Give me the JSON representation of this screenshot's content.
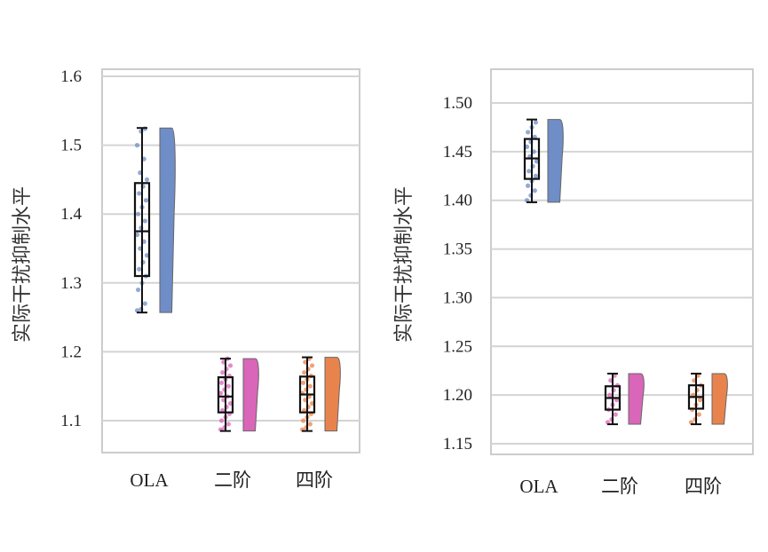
{
  "chart_data": [
    {
      "type": "box",
      "ylabel": "实际干扰抑制水平",
      "ylim": [
        1.05,
        1.6
      ],
      "yticks": [
        "1.1",
        "1.2",
        "1.3",
        "1.4",
        "1.5",
        "1.6"
      ],
      "grid": true,
      "categories": [
        "OLA",
        "二阶",
        "四阶"
      ],
      "colors": [
        "#6f8dc6",
        "#d966b9",
        "#e9834e"
      ],
      "series": [
        {
          "category": "OLA",
          "min": 1.257,
          "q1": 1.31,
          "median": 1.375,
          "q3": 1.445,
          "max": 1.525,
          "points": [
            1.26,
            1.262,
            1.27,
            1.29,
            1.3,
            1.31,
            1.32,
            1.33,
            1.34,
            1.35,
            1.36,
            1.37,
            1.38,
            1.39,
            1.4,
            1.41,
            1.42,
            1.43,
            1.44,
            1.45,
            1.46,
            1.48,
            1.5,
            1.52,
            1.524
          ]
        },
        {
          "category": "二阶",
          "min": 1.085,
          "q1": 1.112,
          "median": 1.135,
          "q3": 1.163,
          "max": 1.19,
          "points": [
            1.087,
            1.09,
            1.095,
            1.1,
            1.105,
            1.11,
            1.115,
            1.12,
            1.125,
            1.13,
            1.135,
            1.14,
            1.145,
            1.15,
            1.155,
            1.16,
            1.165,
            1.17,
            1.175,
            1.18,
            1.185,
            1.19
          ]
        },
        {
          "category": "四阶",
          "min": 1.085,
          "q1": 1.112,
          "median": 1.138,
          "q3": 1.164,
          "max": 1.192,
          "points": [
            1.087,
            1.09,
            1.095,
            1.1,
            1.105,
            1.11,
            1.115,
            1.12,
            1.125,
            1.13,
            1.135,
            1.14,
            1.145,
            1.15,
            1.155,
            1.16,
            1.165,
            1.17,
            1.175,
            1.18,
            1.185,
            1.19
          ]
        }
      ]
    },
    {
      "type": "box",
      "ylabel": "实际干扰抑制水平",
      "ylim": [
        1.14,
        1.54
      ],
      "yticks": [
        "1.15",
        "1.20",
        "1.25",
        "1.30",
        "1.35",
        "1.40",
        "1.45",
        "1.50"
      ],
      "grid": true,
      "categories": [
        "OLA",
        "二阶",
        "四阶"
      ],
      "colors": [
        "#6f8dc6",
        "#d966b9",
        "#e9834e"
      ],
      "series": [
        {
          "category": "OLA",
          "min": 1.398,
          "q1": 1.422,
          "median": 1.443,
          "q3": 1.463,
          "max": 1.483,
          "points": [
            1.4,
            1.405,
            1.41,
            1.415,
            1.42,
            1.425,
            1.43,
            1.435,
            1.44,
            1.445,
            1.45,
            1.455,
            1.46,
            1.465,
            1.47,
            1.475,
            1.48
          ]
        },
        {
          "category": "二阶",
          "min": 1.17,
          "q1": 1.185,
          "median": 1.197,
          "q3": 1.209,
          "max": 1.222,
          "points": [
            1.172,
            1.175,
            1.18,
            1.185,
            1.19,
            1.195,
            1.2,
            1.205,
            1.21,
            1.215,
            1.22
          ]
        },
        {
          "category": "四阶",
          "min": 1.17,
          "q1": 1.186,
          "median": 1.198,
          "q3": 1.21,
          "max": 1.222,
          "points": [
            1.172,
            1.175,
            1.18,
            1.185,
            1.19,
            1.195,
            1.2,
            1.205,
            1.21,
            1.215,
            1.22
          ]
        }
      ]
    }
  ]
}
